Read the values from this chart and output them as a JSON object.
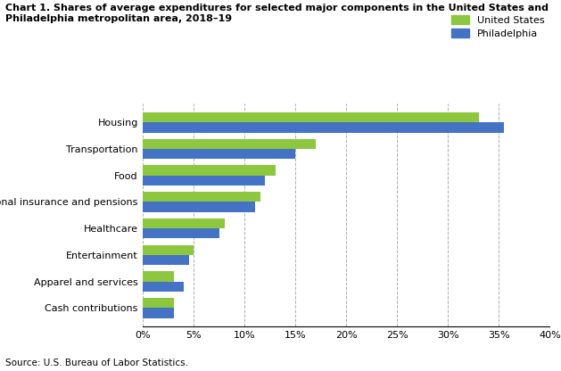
{
  "title_line1": "Chart 1. Shares of average expenditures for selected major components in the United States and",
  "title_line2": "Philadelphia metropolitan area, 2018–19",
  "categories": [
    "Cash contributions",
    "Apparel and services",
    "Entertainment",
    "Healthcare",
    "Personal insurance and pensions",
    "Food",
    "Transportation",
    "Housing"
  ],
  "us_values": [
    3.0,
    3.0,
    5.0,
    8.0,
    11.5,
    13.0,
    17.0,
    33.0
  ],
  "philly_values": [
    3.0,
    4.0,
    4.5,
    7.5,
    11.0,
    12.0,
    15.0,
    35.5
  ],
  "us_color": "#8DC63F",
  "philly_color": "#4472C4",
  "us_label": "United States",
  "philly_label": "Philadelphia",
  "xlim": [
    0,
    40
  ],
  "xticks": [
    0,
    5,
    10,
    15,
    20,
    25,
    30,
    35,
    40
  ],
  "xtick_labels": [
    "0%",
    "5%",
    "10%",
    "15%",
    "20%",
    "25%",
    "30%",
    "35%",
    "40%"
  ],
  "source": "Source: U.S. Bureau of Labor Statistics.",
  "background_color": "#ffffff",
  "grid_color": "#b0b0b0",
  "bar_height": 0.38
}
